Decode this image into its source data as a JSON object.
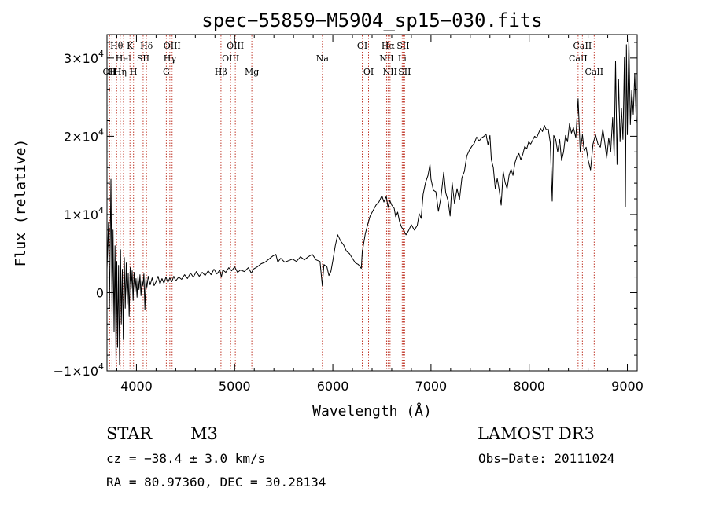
{
  "chart_data": {
    "type": "line",
    "title": "spec−55859−M5904_sp15−030.fits",
    "xlabel": "Wavelength (Å)",
    "ylabel": "Flux (relative)",
    "xlim": [
      3700,
      9100
    ],
    "ylim": [
      -10000,
      33000
    ],
    "x_ticks": [
      {
        "value": 4000,
        "label": "4000"
      },
      {
        "value": 5000,
        "label": "5000"
      },
      {
        "value": 6000,
        "label": "6000"
      },
      {
        "value": 7000,
        "label": "7000"
      },
      {
        "value": 8000,
        "label": "8000"
      },
      {
        "value": 9000,
        "label": "9000"
      }
    ],
    "y_ticks": [
      {
        "value": -10000,
        "mant": "−1×10",
        "exp": "4"
      },
      {
        "value": 0,
        "mant": "0",
        "exp": ""
      },
      {
        "value": 10000,
        "mant": "1×10",
        "exp": "4"
      },
      {
        "value": 20000,
        "mant": "2×10",
        "exp": "4"
      },
      {
        "value": 30000,
        "mant": "3×10",
        "exp": "4"
      }
    ],
    "line_color": "#000000",
    "marker_color": "#c0392b",
    "spectrum": [
      [
        3700,
        3000
      ],
      [
        3715,
        9000
      ],
      [
        3725,
        -2000
      ],
      [
        3740,
        14500
      ],
      [
        3752,
        -3000
      ],
      [
        3762,
        8000
      ],
      [
        3772,
        -5000
      ],
      [
        3782,
        6000
      ],
      [
        3792,
        -9000
      ],
      [
        3800,
        4000
      ],
      [
        3808,
        -7000
      ],
      [
        3818,
        3500
      ],
      [
        3828,
        -9200
      ],
      [
        3838,
        5500
      ],
      [
        3846,
        -4000
      ],
      [
        3856,
        3000
      ],
      [
        3866,
        -6000
      ],
      [
        3876,
        4500
      ],
      [
        3886,
        -2000
      ],
      [
        3896,
        3800
      ],
      [
        3906,
        -1500
      ],
      [
        3916,
        2500
      ],
      [
        3926,
        -3000
      ],
      [
        3936,
        3200
      ],
      [
        3946,
        500
      ],
      [
        3956,
        2800
      ],
      [
        3966,
        -1000
      ],
      [
        3976,
        2600
      ],
      [
        3986,
        200
      ],
      [
        3996,
        1800
      ],
      [
        4006,
        -600
      ],
      [
        4016,
        2100
      ],
      [
        4026,
        400
      ],
      [
        4036,
        2300
      ],
      [
        4046,
        -400
      ],
      [
        4056,
        1600
      ],
      [
        4066,
        900
      ],
      [
        4076,
        2400
      ],
      [
        4086,
        -2200
      ],
      [
        4096,
        1900
      ],
      [
        4106,
        700
      ],
      [
        4120,
        2100
      ],
      [
        4140,
        1000
      ],
      [
        4160,
        1900
      ],
      [
        4180,
        900
      ],
      [
        4200,
        1400
      ],
      [
        4220,
        2100
      ],
      [
        4240,
        1100
      ],
      [
        4260,
        1800
      ],
      [
        4280,
        1200
      ],
      [
        4300,
        2000
      ],
      [
        4320,
        1300
      ],
      [
        4340,
        1900
      ],
      [
        4360,
        1400
      ],
      [
        4380,
        2100
      ],
      [
        4400,
        1500
      ],
      [
        4430,
        2000
      ],
      [
        4460,
        1700
      ],
      [
        4490,
        2300
      ],
      [
        4520,
        1800
      ],
      [
        4550,
        2500
      ],
      [
        4580,
        2000
      ],
      [
        4610,
        2700
      ],
      [
        4640,
        2100
      ],
      [
        4670,
        2600
      ],
      [
        4700,
        2200
      ],
      [
        4730,
        2800
      ],
      [
        4760,
        2300
      ],
      [
        4790,
        3000
      ],
      [
        4820,
        2400
      ],
      [
        4850,
        2900
      ],
      [
        4865,
        2000
      ],
      [
        4880,
        2900
      ],
      [
        4910,
        2600
      ],
      [
        4940,
        3200
      ],
      [
        4970,
        2800
      ],
      [
        5000,
        3300
      ],
      [
        5030,
        2600
      ],
      [
        5060,
        2900
      ],
      [
        5100,
        2700
      ],
      [
        5140,
        3200
      ],
      [
        5170,
        2500
      ],
      [
        5190,
        3000
      ],
      [
        5230,
        3300
      ],
      [
        5270,
        3700
      ],
      [
        5310,
        3900
      ],
      [
        5350,
        4300
      ],
      [
        5390,
        4700
      ],
      [
        5420,
        4900
      ],
      [
        5440,
        3900
      ],
      [
        5470,
        4400
      ],
      [
        5510,
        3900
      ],
      [
        5550,
        4100
      ],
      [
        5590,
        4300
      ],
      [
        5630,
        4000
      ],
      [
        5670,
        4600
      ],
      [
        5710,
        4200
      ],
      [
        5750,
        4600
      ],
      [
        5790,
        4900
      ],
      [
        5830,
        4200
      ],
      [
        5870,
        4000
      ],
      [
        5893,
        900
      ],
      [
        5910,
        3600
      ],
      [
        5940,
        3300
      ],
      [
        5960,
        2200
      ],
      [
        5980,
        2700
      ],
      [
        6000,
        4100
      ],
      [
        6025,
        6000
      ],
      [
        6050,
        7400
      ],
      [
        6080,
        6600
      ],
      [
        6110,
        6100
      ],
      [
        6140,
        5300
      ],
      [
        6170,
        5000
      ],
      [
        6200,
        4400
      ],
      [
        6230,
        3800
      ],
      [
        6260,
        3600
      ],
      [
        6290,
        3100
      ],
      [
        6300,
        5200
      ],
      [
        6330,
        7500
      ],
      [
        6355,
        8700
      ],
      [
        6380,
        9800
      ],
      [
        6410,
        10500
      ],
      [
        6440,
        11200
      ],
      [
        6470,
        11600
      ],
      [
        6500,
        12400
      ],
      [
        6520,
        11600
      ],
      [
        6545,
        12300
      ],
      [
        6563,
        10900
      ],
      [
        6580,
        11800
      ],
      [
        6600,
        11200
      ],
      [
        6625,
        10800
      ],
      [
        6640,
        9700
      ],
      [
        6660,
        10300
      ],
      [
        6680,
        9100
      ],
      [
        6700,
        8400
      ],
      [
        6720,
        8000
      ],
      [
        6745,
        7400
      ],
      [
        6770,
        7900
      ],
      [
        6800,
        8700
      ],
      [
        6830,
        8000
      ],
      [
        6860,
        8600
      ],
      [
        6880,
        10100
      ],
      [
        6900,
        9500
      ],
      [
        6920,
        12600
      ],
      [
        6945,
        14100
      ],
      [
        6970,
        15000
      ],
      [
        6990,
        16400
      ],
      [
        7000,
        14500
      ],
      [
        7025,
        13100
      ],
      [
        7050,
        12900
      ],
      [
        7075,
        10400
      ],
      [
        7100,
        12100
      ],
      [
        7130,
        15400
      ],
      [
        7150,
        12800
      ],
      [
        7175,
        11700
      ],
      [
        7195,
        9800
      ],
      [
        7215,
        14100
      ],
      [
        7240,
        11400
      ],
      [
        7265,
        13300
      ],
      [
        7290,
        11900
      ],
      [
        7315,
        14700
      ],
      [
        7340,
        15500
      ],
      [
        7365,
        17500
      ],
      [
        7390,
        18200
      ],
      [
        7415,
        18700
      ],
      [
        7440,
        19100
      ],
      [
        7465,
        19900
      ],
      [
        7490,
        19400
      ],
      [
        7515,
        19800
      ],
      [
        7540,
        20000
      ],
      [
        7560,
        20300
      ],
      [
        7580,
        18900
      ],
      [
        7600,
        20100
      ],
      [
        7615,
        17000
      ],
      [
        7635,
        16000
      ],
      [
        7655,
        13300
      ],
      [
        7675,
        14600
      ],
      [
        7695,
        13100
      ],
      [
        7715,
        11200
      ],
      [
        7735,
        15500
      ],
      [
        7755,
        14100
      ],
      [
        7775,
        13300
      ],
      [
        7795,
        15000
      ],
      [
        7815,
        15800
      ],
      [
        7835,
        15000
      ],
      [
        7855,
        16600
      ],
      [
        7875,
        17400
      ],
      [
        7895,
        17800
      ],
      [
        7915,
        17000
      ],
      [
        7935,
        17700
      ],
      [
        7955,
        18700
      ],
      [
        7975,
        18400
      ],
      [
        7995,
        19300
      ],
      [
        8015,
        19000
      ],
      [
        8035,
        19500
      ],
      [
        8055,
        20000
      ],
      [
        8075,
        19800
      ],
      [
        8095,
        20400
      ],
      [
        8115,
        21000
      ],
      [
        8135,
        20600
      ],
      [
        8155,
        21400
      ],
      [
        8175,
        20800
      ],
      [
        8195,
        20900
      ],
      [
        8215,
        19200
      ],
      [
        8235,
        11700
      ],
      [
        8250,
        20100
      ],
      [
        8270,
        19600
      ],
      [
        8290,
        18000
      ],
      [
        8310,
        19600
      ],
      [
        8330,
        16900
      ],
      [
        8350,
        18000
      ],
      [
        8370,
        20100
      ],
      [
        8390,
        19300
      ],
      [
        8410,
        21600
      ],
      [
        8430,
        20400
      ],
      [
        8450,
        21100
      ],
      [
        8475,
        19800
      ],
      [
        8498,
        24800
      ],
      [
        8520,
        18000
      ],
      [
        8542,
        20200
      ],
      [
        8560,
        18100
      ],
      [
        8580,
        18600
      ],
      [
        8600,
        17000
      ],
      [
        8625,
        15700
      ],
      [
        8650,
        19000
      ],
      [
        8675,
        20200
      ],
      [
        8700,
        19000
      ],
      [
        8725,
        18600
      ],
      [
        8750,
        20900
      ],
      [
        8770,
        19200
      ],
      [
        8790,
        17200
      ],
      [
        8810,
        19800
      ],
      [
        8830,
        18000
      ],
      [
        8850,
        22400
      ],
      [
        8865,
        17500
      ],
      [
        8880,
        29600
      ],
      [
        8895,
        16400
      ],
      [
        8910,
        27300
      ],
      [
        8925,
        19300
      ],
      [
        8940,
        23600
      ],
      [
        8955,
        19600
      ],
      [
        8970,
        30100
      ],
      [
        8980,
        11000
      ],
      [
        8990,
        31700
      ],
      [
        9000,
        20200
      ],
      [
        9015,
        32500
      ],
      [
        9030,
        21500
      ],
      [
        9045,
        25900
      ],
      [
        9060,
        22800
      ],
      [
        9075,
        28000
      ],
      [
        9090,
        21800
      ]
    ],
    "lines": [
      {
        "wl": 3727,
        "label": "OII",
        "row": 3
      },
      {
        "wl": 3751,
        "label": "H",
        "row": 3
      },
      {
        "wl": 3798,
        "label": "Hθ",
        "row": 1
      },
      {
        "wl": 3835,
        "label": "Hη",
        "row": 3
      },
      {
        "wl": 3868,
        "label": "HeI",
        "row": 2
      },
      {
        "wl": 3934,
        "label": "K",
        "row": 1
      },
      {
        "wl": 3970,
        "label": "H",
        "row": 3
      },
      {
        "wl": 4068,
        "label": "SII",
        "row": 2
      },
      {
        "wl": 4102,
        "label": "Hδ",
        "row": 1
      },
      {
        "wl": 4304,
        "label": "G",
        "row": 3
      },
      {
        "wl": 4340,
        "label": "Hγ",
        "row": 2
      },
      {
        "wl": 4363,
        "label": "OIII",
        "row": 1
      },
      {
        "wl": 4861,
        "label": "Hβ",
        "row": 3
      },
      {
        "wl": 4959,
        "label": "OIII",
        "row": 2
      },
      {
        "wl": 5007,
        "label": "OIII",
        "row": 1
      },
      {
        "wl": 5175,
        "label": "Mg",
        "row": 3
      },
      {
        "wl": 5894,
        "label": "Na",
        "row": 2
      },
      {
        "wl": 6300,
        "label": "OI",
        "row": 1
      },
      {
        "wl": 6364,
        "label": "OI",
        "row": 3
      },
      {
        "wl": 6548,
        "label": "NII",
        "row": 2
      },
      {
        "wl": 6563,
        "label": "Hα",
        "row": 1
      },
      {
        "wl": 6583,
        "label": "NII",
        "row": 3
      },
      {
        "wl": 6707,
        "label": "Li",
        "row": 2
      },
      {
        "wl": 6716,
        "label": "SII",
        "row": 1
      },
      {
        "wl": 6731,
        "label": "SII",
        "row": 3
      },
      {
        "wl": 8498,
        "label": "CaII",
        "row": 2
      },
      {
        "wl": 8542,
        "label": "CaII",
        "row": 1
      },
      {
        "wl": 8662,
        "label": "CaII",
        "row": 3
      }
    ]
  },
  "info": {
    "object_class": "STAR",
    "subclass": "M3",
    "survey": "LAMOST DR3",
    "cz_text": "cz = −38.4 ± 3.0 km/s",
    "obs_date_text": "Obs−Date: 20111024",
    "radec_text": "RA =  80.97360, DEC =  30.28134"
  }
}
